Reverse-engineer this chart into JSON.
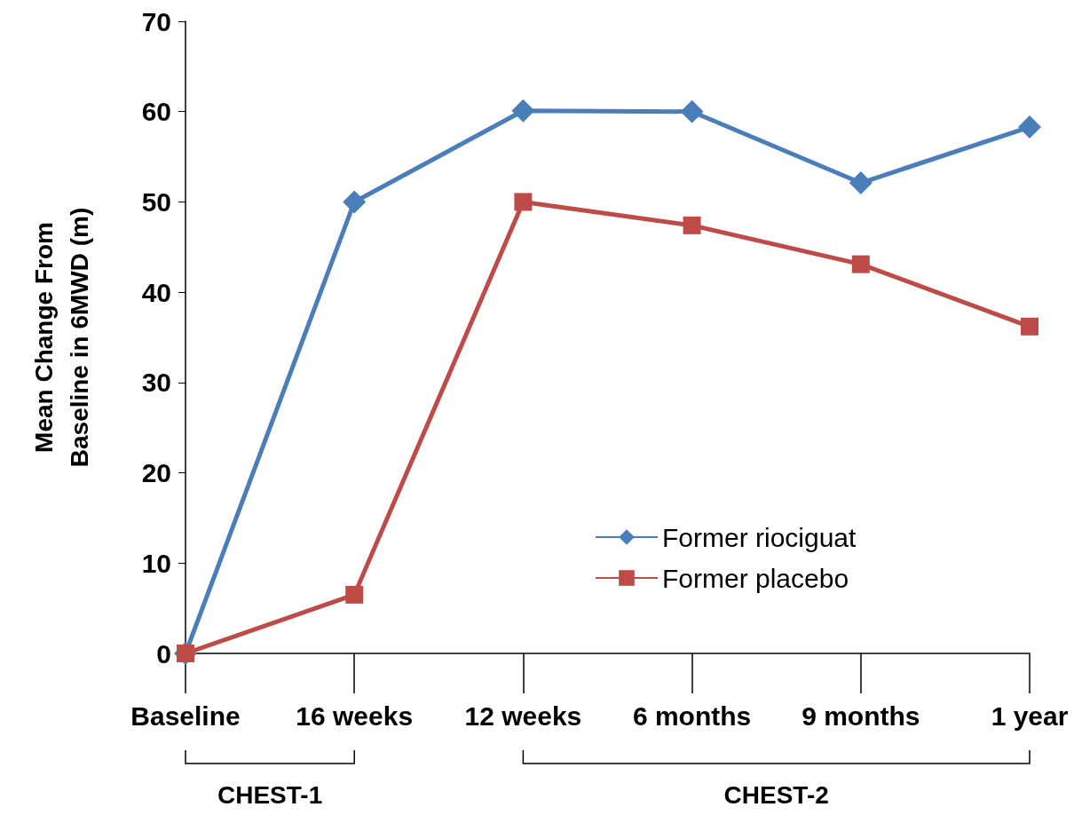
{
  "chart_data": {
    "type": "line",
    "ylabel": "Mean Change From\nBaseline in 6MWD (m)",
    "categories": [
      "Baseline",
      "16 weeks",
      "12 weeks",
      "6 months",
      "9 months",
      "1 year"
    ],
    "series": [
      {
        "name": "Former riociguat",
        "color": "#4a7ebb",
        "marker": "diamond",
        "values": [
          0,
          50,
          60.1,
          60,
          52.1,
          58.3
        ]
      },
      {
        "name": "Former placebo",
        "color": "#be4b48",
        "marker": "square",
        "values": [
          0,
          6.5,
          50,
          47.4,
          43.1,
          36.2
        ]
      }
    ],
    "ylim": [
      0,
      70
    ],
    "yticks": [
      0,
      10,
      20,
      30,
      40,
      50,
      60,
      70
    ],
    "grid": false,
    "legend": "bottom right",
    "annotations": [
      "CHEST-1",
      "CHEST-2"
    ]
  }
}
